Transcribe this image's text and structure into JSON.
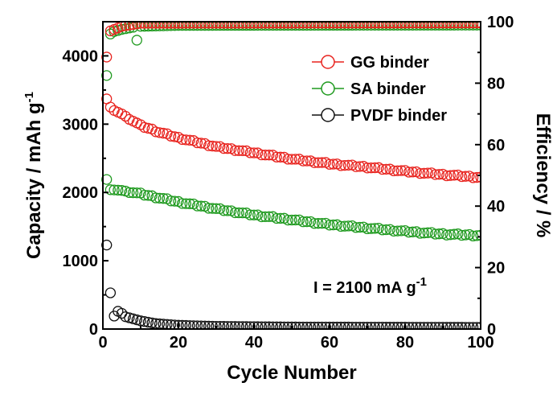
{
  "chart_data": {
    "type": "scatter",
    "xlabel": "Cycle Number",
    "ylabel": "Capacity / mAh g",
    "ylabel_sup": "-1",
    "y2label": "Efficiency / %",
    "xlim": [
      0,
      100
    ],
    "ylim": [
      0,
      4500
    ],
    "y2lim": [
      0,
      100
    ],
    "xticks": [
      0,
      20,
      40,
      60,
      80,
      100
    ],
    "yticks": [
      0,
      1000,
      2000,
      3000,
      4000
    ],
    "y2ticks": [
      0,
      20,
      40,
      60,
      80,
      100
    ],
    "legend_position": "top-right",
    "annotation": {
      "text": "I = 2100 mA g",
      "sup": "-1"
    },
    "colors": {
      "GG binder": "#e8231e",
      "SA binder": "#1f9a1f",
      "PVDF binder": "#111111"
    },
    "series": [
      {
        "name": "GG binder",
        "axis": "left",
        "kind": "capacity",
        "anchors": [
          [
            1,
            3370
          ],
          [
            2,
            3250
          ],
          [
            3,
            3200
          ],
          [
            5,
            3150
          ],
          [
            10,
            2980
          ],
          [
            15,
            2880
          ],
          [
            20,
            2800
          ],
          [
            30,
            2670
          ],
          [
            40,
            2580
          ],
          [
            50,
            2490
          ],
          [
            60,
            2420
          ],
          [
            70,
            2370
          ],
          [
            80,
            2310
          ],
          [
            90,
            2260
          ],
          [
            100,
            2220
          ]
        ]
      },
      {
        "name": "SA binder",
        "axis": "left",
        "kind": "capacity",
        "anchors": [
          [
            1,
            2190
          ],
          [
            2,
            2040
          ],
          [
            5,
            2030
          ],
          [
            10,
            1980
          ],
          [
            20,
            1860
          ],
          [
            30,
            1760
          ],
          [
            40,
            1670
          ],
          [
            50,
            1600
          ],
          [
            60,
            1530
          ],
          [
            70,
            1480
          ],
          [
            80,
            1430
          ],
          [
            90,
            1390
          ],
          [
            100,
            1370
          ]
        ]
      },
      {
        "name": "PVDF binder",
        "axis": "left",
        "kind": "capacity",
        "anchors": [
          [
            1,
            1230
          ],
          [
            2,
            530
          ],
          [
            3,
            190
          ],
          [
            4,
            260
          ],
          [
            5,
            230
          ],
          [
            6,
            180
          ],
          [
            8,
            150
          ],
          [
            10,
            120
          ],
          [
            14,
            80
          ],
          [
            20,
            55
          ],
          [
            30,
            40
          ],
          [
            50,
            30
          ],
          [
            100,
            25
          ]
        ]
      },
      {
        "name": "GG binder",
        "axis": "right",
        "kind": "efficiency",
        "anchors": [
          [
            1,
            88.5
          ],
          [
            2,
            97
          ],
          [
            3,
            97.5
          ],
          [
            5,
            98.5
          ],
          [
            10,
            99.5
          ],
          [
            100,
            99.6
          ]
        ]
      },
      {
        "name": "SA binder",
        "axis": "right",
        "kind": "efficiency",
        "anchors": [
          [
            1,
            82.5
          ],
          [
            2,
            96
          ],
          [
            3,
            96.8
          ],
          [
            5,
            97.5
          ],
          [
            8,
            98.2
          ],
          [
            9,
            94
          ],
          [
            10,
            98.5
          ],
          [
            20,
            98.8
          ],
          [
            100,
            98.9
          ]
        ]
      }
    ]
  }
}
